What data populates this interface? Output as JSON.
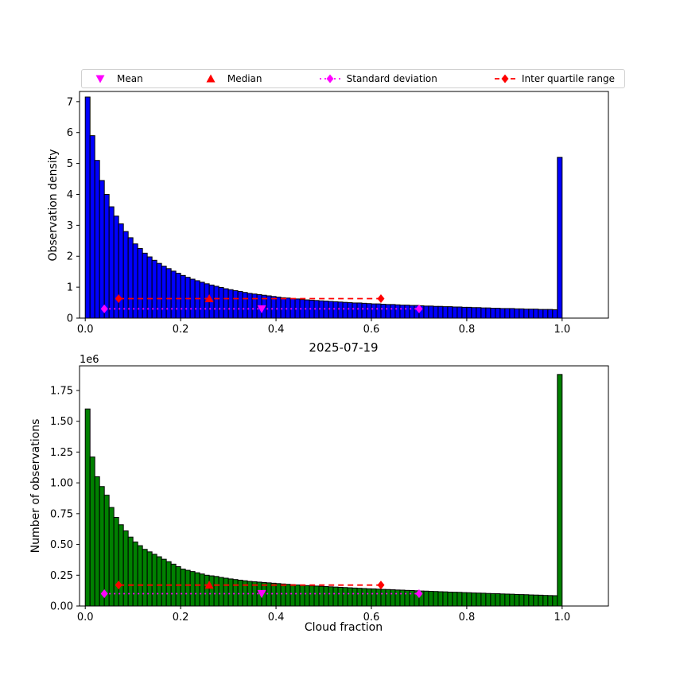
{
  "legend": {
    "items": [
      {
        "name": "mean",
        "label": "Mean",
        "color": "#ff00ff",
        "marker": "triangle-down",
        "linestyle": "none"
      },
      {
        "name": "median",
        "label": "Median",
        "color": "#ff0000",
        "marker": "triangle-up",
        "linestyle": "none"
      },
      {
        "name": "std",
        "label": "Standard deviation",
        "color": "#ff00ff",
        "marker": "diamond",
        "linestyle": "dotted"
      },
      {
        "name": "iqr",
        "label": "Inter quartile range",
        "color": "#ff0000",
        "marker": "diamond",
        "linestyle": "dashed"
      }
    ]
  },
  "chart_data": [
    {
      "type": "bar",
      "title": "",
      "xlabel": "",
      "ylabel": "Observation density",
      "bar_color": "#0000ff",
      "edge_color": "#000000",
      "bin_start": 0.0,
      "bin_width": 0.01,
      "xlim": [
        -0.012,
        1.097
      ],
      "ylim": [
        0,
        7.33
      ],
      "xticks": [
        0.0,
        0.2,
        0.4,
        0.6,
        0.8,
        1.0
      ],
      "xtick_labels": [
        "0.0",
        "0.2",
        "0.4",
        "0.6",
        "0.8",
        "1.0"
      ],
      "yticks": [
        0,
        1,
        2,
        3,
        4,
        5,
        6,
        7
      ],
      "ytick_labels": [
        "0",
        "1",
        "2",
        "3",
        "4",
        "5",
        "6",
        "7"
      ],
      "values": [
        7.15,
        5.9,
        5.1,
        4.45,
        4.0,
        3.6,
        3.3,
        3.05,
        2.8,
        2.6,
        2.4,
        2.25,
        2.1,
        1.98,
        1.87,
        1.77,
        1.68,
        1.6,
        1.52,
        1.45,
        1.38,
        1.32,
        1.26,
        1.21,
        1.16,
        1.11,
        1.07,
        1.03,
        0.99,
        0.95,
        0.92,
        0.89,
        0.86,
        0.83,
        0.8,
        0.78,
        0.76,
        0.74,
        0.72,
        0.7,
        0.68,
        0.66,
        0.65,
        0.63,
        0.62,
        0.6,
        0.59,
        0.58,
        0.57,
        0.56,
        0.55,
        0.54,
        0.53,
        0.52,
        0.51,
        0.5,
        0.49,
        0.49,
        0.48,
        0.47,
        0.46,
        0.46,
        0.45,
        0.44,
        0.44,
        0.43,
        0.42,
        0.42,
        0.41,
        0.41,
        0.4,
        0.39,
        0.39,
        0.38,
        0.38,
        0.37,
        0.37,
        0.36,
        0.36,
        0.35,
        0.35,
        0.34,
        0.34,
        0.33,
        0.33,
        0.32,
        0.32,
        0.31,
        0.31,
        0.31,
        0.3,
        0.3,
        0.29,
        0.29,
        0.29,
        0.28,
        0.28,
        0.28,
        0.27,
        5.2
      ],
      "markers": {
        "mean": {
          "x": 0.37,
          "y": 0.3
        },
        "median": {
          "x": 0.26,
          "y": 0.63
        },
        "std": {
          "x1": 0.04,
          "x2": 0.7,
          "y": 0.3
        },
        "iqr": {
          "x1": 0.07,
          "x2": 0.62,
          "y": 0.63
        }
      },
      "marker_colors": {
        "mean": "#ff00ff",
        "median": "#ff0000"
      }
    },
    {
      "type": "bar",
      "title": "2025-07-19",
      "xlabel": "Cloud fraction",
      "ylabel": "Number of observations",
      "offset_text": "1e6",
      "bar_color": "#008000",
      "edge_color": "#000000",
      "bin_start": 0.0,
      "bin_width": 0.01,
      "xlim": [
        -0.012,
        1.097
      ],
      "ylim": [
        0,
        1.95
      ],
      "xticks": [
        0.0,
        0.2,
        0.4,
        0.6,
        0.8,
        1.0
      ],
      "xtick_labels": [
        "0.0",
        "0.2",
        "0.4",
        "0.6",
        "0.8",
        "1.0"
      ],
      "yticks": [
        0,
        0.25,
        0.5,
        0.75,
        1.0,
        1.25,
        1.5,
        1.75
      ],
      "ytick_labels": [
        "0.00",
        "0.25",
        "0.50",
        "0.75",
        "1.00",
        "1.25",
        "1.50",
        "1.75"
      ],
      "values": [
        1.6,
        1.21,
        1.05,
        0.97,
        0.9,
        0.8,
        0.72,
        0.66,
        0.61,
        0.56,
        0.52,
        0.49,
        0.46,
        0.44,
        0.42,
        0.4,
        0.38,
        0.36,
        0.34,
        0.32,
        0.3,
        0.29,
        0.28,
        0.27,
        0.26,
        0.25,
        0.245,
        0.24,
        0.232,
        0.226,
        0.22,
        0.215,
        0.21,
        0.205,
        0.2,
        0.197,
        0.194,
        0.191,
        0.188,
        0.185,
        0.182,
        0.179,
        0.176,
        0.174,
        0.171,
        0.169,
        0.166,
        0.164,
        0.162,
        0.16,
        0.158,
        0.156,
        0.154,
        0.152,
        0.15,
        0.148,
        0.146,
        0.144,
        0.142,
        0.14,
        0.139,
        0.137,
        0.135,
        0.134,
        0.132,
        0.13,
        0.129,
        0.127,
        0.126,
        0.124,
        0.122,
        0.121,
        0.119,
        0.118,
        0.116,
        0.115,
        0.113,
        0.112,
        0.111,
        0.109,
        0.108,
        0.106,
        0.105,
        0.104,
        0.102,
        0.101,
        0.1,
        0.098,
        0.097,
        0.096,
        0.094,
        0.093,
        0.092,
        0.09,
        0.089,
        0.088,
        0.086,
        0.085,
        0.084,
        1.88
      ],
      "markers": {
        "mean": {
          "x": 0.37,
          "y": 0.1
        },
        "median": {
          "x": 0.26,
          "y": 0.17
        },
        "std": {
          "x1": 0.04,
          "x2": 0.7,
          "y": 0.1
        },
        "iqr": {
          "x1": 0.07,
          "x2": 0.62,
          "y": 0.17
        }
      },
      "marker_colors": {
        "mean": "#ff00ff",
        "median": "#ff0000"
      }
    }
  ]
}
